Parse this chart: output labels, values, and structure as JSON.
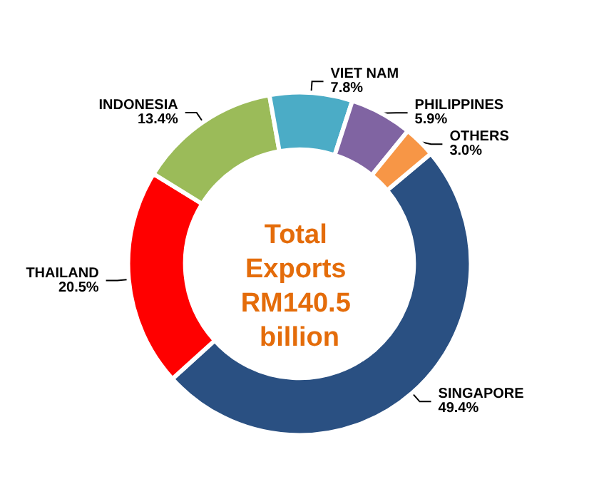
{
  "chart_data": {
    "type": "donut",
    "title": "Total Exports RM140.5 billion",
    "categories": [
      "SINGAPORE",
      "THAILAND",
      "INDONESIA",
      "VIET NAM",
      "PHILIPPINES",
      "OTHERS"
    ],
    "values": [
      49.4,
      20.5,
      13.4,
      7.8,
      5.9,
      3.0
    ],
    "value_labels": [
      "49.4%",
      "20.5%",
      "13.4%",
      "7.8%",
      "5.9%",
      "3.0%"
    ],
    "colors": [
      "#2a5082",
      "#ff0000",
      "#9bbb59",
      "#4bacc6",
      "#8064a2",
      "#f79646"
    ]
  }
}
